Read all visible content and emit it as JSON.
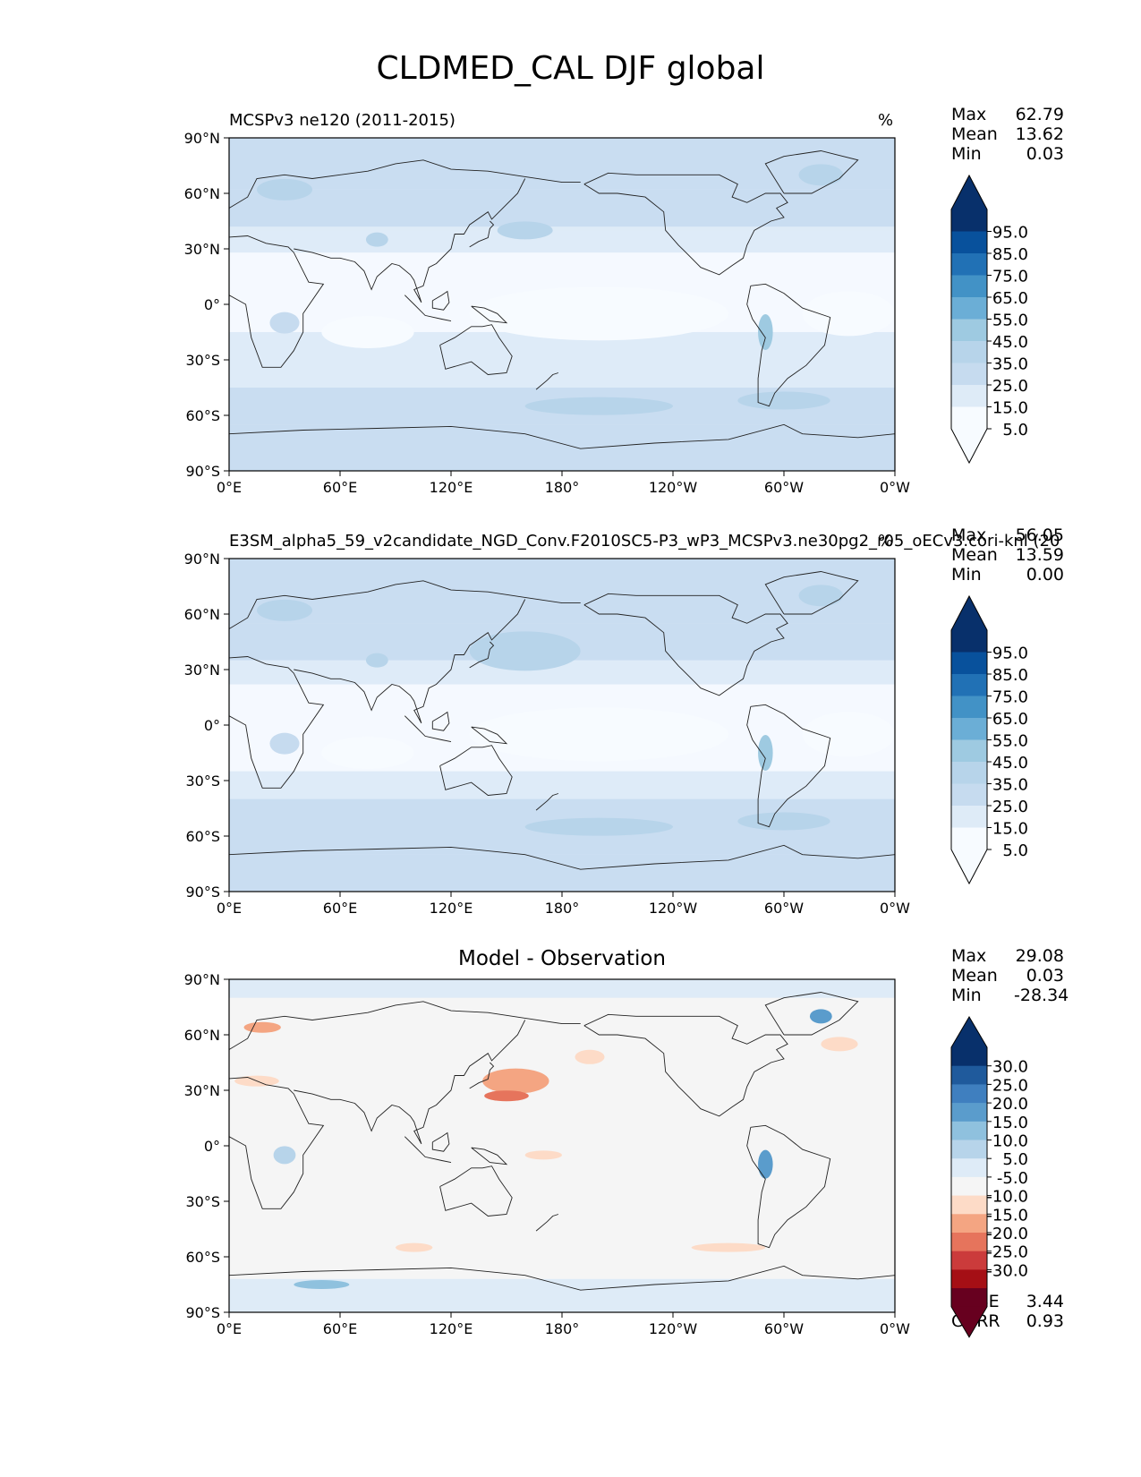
{
  "suptitle": "CLDMED_CAL DJF global",
  "colors": {
    "blues": [
      "#f7fbff",
      "#deebf7",
      "#c6dbef",
      "#b7d4ea",
      "#9ecae1",
      "#6baed6",
      "#4292c6",
      "#2171b5",
      "#08519c",
      "#08306b"
    ],
    "rdbu": [
      "#67001f",
      "#a50f15",
      "#cb3b3b",
      "#e6745c",
      "#f4a582",
      "#fddbc7",
      "#f5f5f5",
      "#deebf7",
      "#b7d4ea",
      "#8fc1de",
      "#5a9ccc",
      "#3f7fbf",
      "#1f5a9c",
      "#08306b"
    ]
  },
  "chart_data": [
    {
      "type": "heatmap",
      "title": "MCSPv3 ne120 (2011-2015)",
      "units": "%",
      "xticks": [
        "0°E",
        "60°E",
        "120°E",
        "180°",
        "120°W",
        "60°W",
        "0°W"
      ],
      "yticks": [
        "90°N",
        "60°N",
        "30°N",
        "0°",
        "30°S",
        "60°S",
        "90°S"
      ],
      "stats": {
        "max": "62.79",
        "mean": "13.62",
        "min": "0.03"
      },
      "colorbar_ticks": [
        "95.0",
        "85.0",
        "75.0",
        "65.0",
        "55.0",
        "45.0",
        "35.0",
        "25.0",
        "15.0",
        "5.0"
      ],
      "colorbar_levels": [
        0,
        5,
        15,
        25,
        35,
        45,
        55,
        65,
        75,
        85,
        95,
        100
      ],
      "extend": "both"
    },
    {
      "type": "heatmap",
      "title": "E3SM_alpha5_59_v2candidate_NGD_Conv.F2010SC5-P3_wP3_MCSPv3.ne30pg2_r05_oECv3.cori-knl (20",
      "units": "%",
      "xticks": [
        "0°E",
        "60°E",
        "120°E",
        "180°",
        "120°W",
        "60°W",
        "0°W"
      ],
      "yticks": [
        "90°N",
        "60°N",
        "30°N",
        "0°",
        "30°S",
        "60°S",
        "90°S"
      ],
      "stats": {
        "max": "56.05",
        "mean": "13.59",
        "min": "0.00"
      },
      "colorbar_ticks": [
        "95.0",
        "85.0",
        "75.0",
        "65.0",
        "55.0",
        "45.0",
        "35.0",
        "25.0",
        "15.0",
        "5.0"
      ],
      "colorbar_levels": [
        0,
        5,
        15,
        25,
        35,
        45,
        55,
        65,
        75,
        85,
        95,
        100
      ],
      "extend": "both"
    },
    {
      "type": "heatmap",
      "title": "Model - Observation",
      "xticks": [
        "0°E",
        "60°E",
        "120°E",
        "180°",
        "120°W",
        "60°W",
        "0°W"
      ],
      "yticks": [
        "90°N",
        "60°N",
        "30°N",
        "0°",
        "30°S",
        "60°S",
        "90°S"
      ],
      "stats": {
        "max": "29.08",
        "mean": "0.03",
        "min": "-28.34"
      },
      "colorbar_ticks": [
        "30.0",
        "25.0",
        "20.0",
        "15.0",
        "10.0",
        "5.0",
        "-5.0",
        "-10.0",
        "-15.0",
        "-20.0",
        "-25.0",
        "-30.0"
      ],
      "colorbar_levels": [
        -30,
        -25,
        -20,
        -15,
        -10,
        -5,
        5,
        10,
        15,
        20,
        25,
        30
      ],
      "extend": "both",
      "rmse": "3.44",
      "corr": "0.93"
    }
  ],
  "labels": {
    "max": "Max",
    "mean": "Mean",
    "min": "Min",
    "rmse": "RMSE",
    "corr": "CORR"
  }
}
